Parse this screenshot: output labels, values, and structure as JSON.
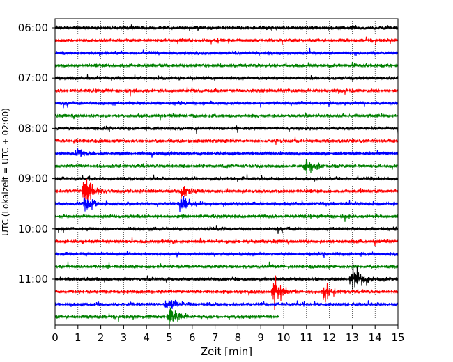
{
  "chart_data": {
    "type": "line",
    "title": "",
    "xlabel": "Zeit  [min]",
    "ylabel": "UTC (Lokalzeit = UTC + 02:00)",
    "xlim": [
      0,
      15
    ],
    "x_ticks": [
      "0",
      "1",
      "2",
      "3",
      "4",
      "5",
      "6",
      "7",
      "8",
      "9",
      "10",
      "11",
      "12",
      "13",
      "14",
      "15"
    ],
    "y_tick_labels": [
      "06:00",
      "07:00",
      "08:00",
      "09:00",
      "10:00",
      "11:00"
    ],
    "grid": "vertical dotted at each minute",
    "legend": "none",
    "trace_minutes": 15,
    "last_trace_end_min": 9.8,
    "trace_colors": [
      "#000000",
      "#ff0000",
      "#0000ff",
      "#008000"
    ],
    "trace_start_times": [
      "06:00",
      "06:15",
      "06:30",
      "06:45",
      "07:00",
      "07:15",
      "07:30",
      "07:45",
      "08:00",
      "08:15",
      "08:30",
      "08:45",
      "09:00",
      "09:15",
      "09:30",
      "09:45",
      "10:00",
      "10:15",
      "10:30",
      "10:45",
      "11:00",
      "11:15",
      "11:30",
      "11:45"
    ],
    "events": [
      {
        "trace": "09:15",
        "x_min": 1.3,
        "amplitude": "large"
      },
      {
        "trace": "09:15",
        "x_min": 5.6,
        "amplitude": "small"
      },
      {
        "trace": "09:30",
        "x_min": 1.3,
        "amplitude": "medium"
      },
      {
        "trace": "09:30",
        "x_min": 5.5,
        "amplitude": "medium"
      },
      {
        "trace": "08:30",
        "x_min": 1.0,
        "amplitude": "small"
      },
      {
        "trace": "08:45",
        "x_min": 11.0,
        "amplitude": "medium"
      },
      {
        "trace": "11:00",
        "x_min": 13.0,
        "amplitude": "large"
      },
      {
        "trace": "11:15",
        "x_min": 9.6,
        "amplitude": "large"
      },
      {
        "trace": "11:15",
        "x_min": 11.8,
        "amplitude": "medium"
      },
      {
        "trace": "11:30",
        "x_min": 4.9,
        "amplitude": "medium"
      },
      {
        "trace": "11:45",
        "x_min": 5.0,
        "amplitude": "medium"
      }
    ]
  }
}
